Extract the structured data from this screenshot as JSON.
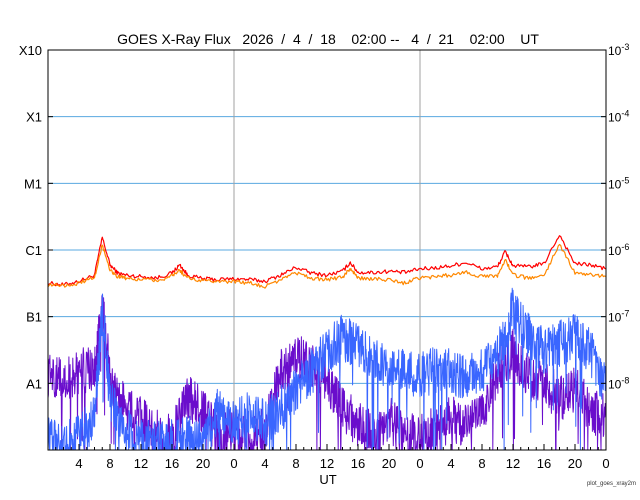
{
  "chart_data": {
    "type": "line",
    "title": "GOES X-Ray Flux   2026  /  4  /  18    02:00 --   4  /  21    02:00    UT",
    "xlabel": "UT",
    "x_range_hours_ut": [
      -2,
      70
    ],
    "x_tick_hours": [
      2,
      6,
      10,
      14,
      18,
      22,
      26,
      30,
      34,
      38,
      42,
      46,
      50,
      54,
      58,
      62,
      66,
      70
    ],
    "x_tick_labels": [
      "4",
      "8",
      "12",
      "16",
      "20",
      "0",
      "4",
      "8",
      "12",
      "16",
      "20",
      "0",
      "4",
      "8",
      "12",
      "16",
      "20",
      "0"
    ],
    "day_boundaries_hours": [
      22,
      46,
      70
    ],
    "y_scale": "log",
    "y_range": [
      1e-09,
      0.001
    ],
    "left_levels": [
      {
        "label": "X10",
        "value": 0.001
      },
      {
        "label": "X1",
        "value": 0.0001
      },
      {
        "label": "M1",
        "value": 1e-05
      },
      {
        "label": "C1",
        "value": 1e-06
      },
      {
        "label": "B1",
        "value": 1e-07
      },
      {
        "label": "A1",
        "value": 1e-08
      }
    ],
    "right_levels": [
      {
        "base": "10",
        "exp": "-3",
        "value": 0.001
      },
      {
        "base": "10",
        "exp": "-4",
        "value": 0.0001
      },
      {
        "base": "10",
        "exp": "-5",
        "value": 1e-05
      },
      {
        "base": "10",
        "exp": "-6",
        "value": 1e-06
      },
      {
        "base": "10",
        "exp": "-7",
        "value": 1e-07
      },
      {
        "base": "10",
        "exp": "-8",
        "value": 1e-08
      }
    ],
    "grid": true,
    "credit": "plot_goes_xray2m",
    "series": [
      {
        "color": "#ff0000",
        "x": [
          -2,
          0,
          2,
          4,
          5,
          6,
          7,
          8,
          10,
          12,
          14,
          15,
          16,
          18,
          20,
          22,
          24,
          26,
          28,
          30,
          32,
          34,
          36,
          37,
          38,
          40,
          42,
          44,
          46,
          48,
          50,
          52,
          54,
          56,
          57,
          58,
          60,
          62,
          64,
          66,
          68,
          70
        ],
        "values": [
          3.2e-07,
          3e-07,
          3.4e-07,
          4.2e-07,
          1.55e-06,
          6e-07,
          4.5e-07,
          4.2e-07,
          4e-07,
          3.8e-07,
          4.5e-07,
          6e-07,
          4.2e-07,
          3.7e-07,
          3.6e-07,
          3.7e-07,
          3.6e-07,
          3.4e-07,
          4.2e-07,
          5.5e-07,
          4.5e-07,
          4.2e-07,
          4.8e-07,
          6.5e-07,
          4.6e-07,
          4.6e-07,
          4.8e-07,
          4.6e-07,
          5.2e-07,
          5.4e-07,
          5.8e-07,
          6.5e-07,
          5.2e-07,
          5.6e-07,
          9.5e-07,
          5.8e-07,
          5.6e-07,
          6.2e-07,
          1.7e-06,
          6.2e-07,
          6e-07,
          5.2e-07
        ]
      },
      {
        "color": "#ff8800",
        "x": [
          -2,
          0,
          2,
          4,
          5,
          6,
          7,
          8,
          10,
          12,
          14,
          15,
          16,
          18,
          20,
          22,
          24,
          26,
          28,
          30,
          32,
          34,
          36,
          37,
          38,
          40,
          42,
          44,
          46,
          48,
          50,
          52,
          54,
          56,
          57,
          58,
          60,
          62,
          64,
          66,
          68,
          70
        ],
        "values": [
          3e-07,
          2.9e-07,
          3.2e-07,
          3.9e-07,
          1.2e-06,
          5e-07,
          4e-07,
          3.8e-07,
          3.6e-07,
          3.5e-07,
          4e-07,
          5e-07,
          3.8e-07,
          3.4e-07,
          3.3e-07,
          3.4e-07,
          3.2e-07,
          2.8e-07,
          3.6e-07,
          4.6e-07,
          3.8e-07,
          3.6e-07,
          3.9e-07,
          5.2e-07,
          3.8e-07,
          3.7e-07,
          3.6e-07,
          3.2e-07,
          3.8e-07,
          4e-07,
          4.2e-07,
          4.6e-07,
          4e-07,
          4.1e-07,
          7e-07,
          4.2e-07,
          3.8e-07,
          4.2e-07,
          1.2e-06,
          4.6e-07,
          4.3e-07,
          4e-07
        ]
      },
      {
        "color": "#6a0dcc",
        "x": [
          -2,
          0,
          2,
          4,
          5,
          6,
          8,
          10,
          12,
          14,
          16,
          18,
          20,
          22,
          24,
          26,
          28,
          30,
          32,
          34,
          36,
          38,
          40,
          42,
          44,
          46,
          48,
          50,
          52,
          54,
          56,
          58,
          60,
          62,
          64,
          66,
          68,
          70
        ],
        "values": [
          1.3e-08,
          1.2e-08,
          1.5e-08,
          1.6e-08,
          1.3e-07,
          1.4e-08,
          4e-09,
          3e-09,
          1.8e-09,
          1.5e-09,
          6e-09,
          4e-09,
          1.4e-09,
          2e-09,
          1.5e-09,
          2e-09,
          1.4e-08,
          2.5e-08,
          1.8e-08,
          1e-08,
          4e-09,
          2.5e-09,
          1.6e-09,
          3e-09,
          1.5e-09,
          1.7e-09,
          2e-09,
          3e-09,
          2.2e-09,
          3.5e-09,
          1.5e-08,
          3e-08,
          1.2e-08,
          1e-08,
          6e-09,
          8e-09,
          4e-09,
          3e-09
        ]
      },
      {
        "color": "#3a66ff",
        "x": [
          -2,
          0,
          2,
          4,
          5,
          6,
          8,
          10,
          12,
          14,
          16,
          18,
          20,
          22,
          24,
          26,
          28,
          30,
          32,
          34,
          36,
          38,
          40,
          42,
          44,
          46,
          48,
          50,
          52,
          54,
          56,
          58,
          60,
          62,
          64,
          66,
          68,
          70
        ],
        "values": [
          1.5e-09,
          1.2e-09,
          1.5e-09,
          3e-09,
          1.3e-07,
          6e-09,
          2e-09,
          1.3e-09,
          1.2e-09,
          1.3e-09,
          1.5e-09,
          1.6e-09,
          4e-09,
          2.5e-09,
          3.5e-09,
          2.5e-09,
          4e-09,
          8e-09,
          1.5e-08,
          3e-08,
          5e-08,
          3.5e-08,
          2e-08,
          1.8e-08,
          1.5e-08,
          1.3e-08,
          1.6e-08,
          1.5e-08,
          1.2e-08,
          1.5e-08,
          2.5e-08,
          1.3e-07,
          5e-08,
          3e-08,
          4e-08,
          5e-08,
          3e-08,
          8e-09
        ]
      }
    ]
  }
}
